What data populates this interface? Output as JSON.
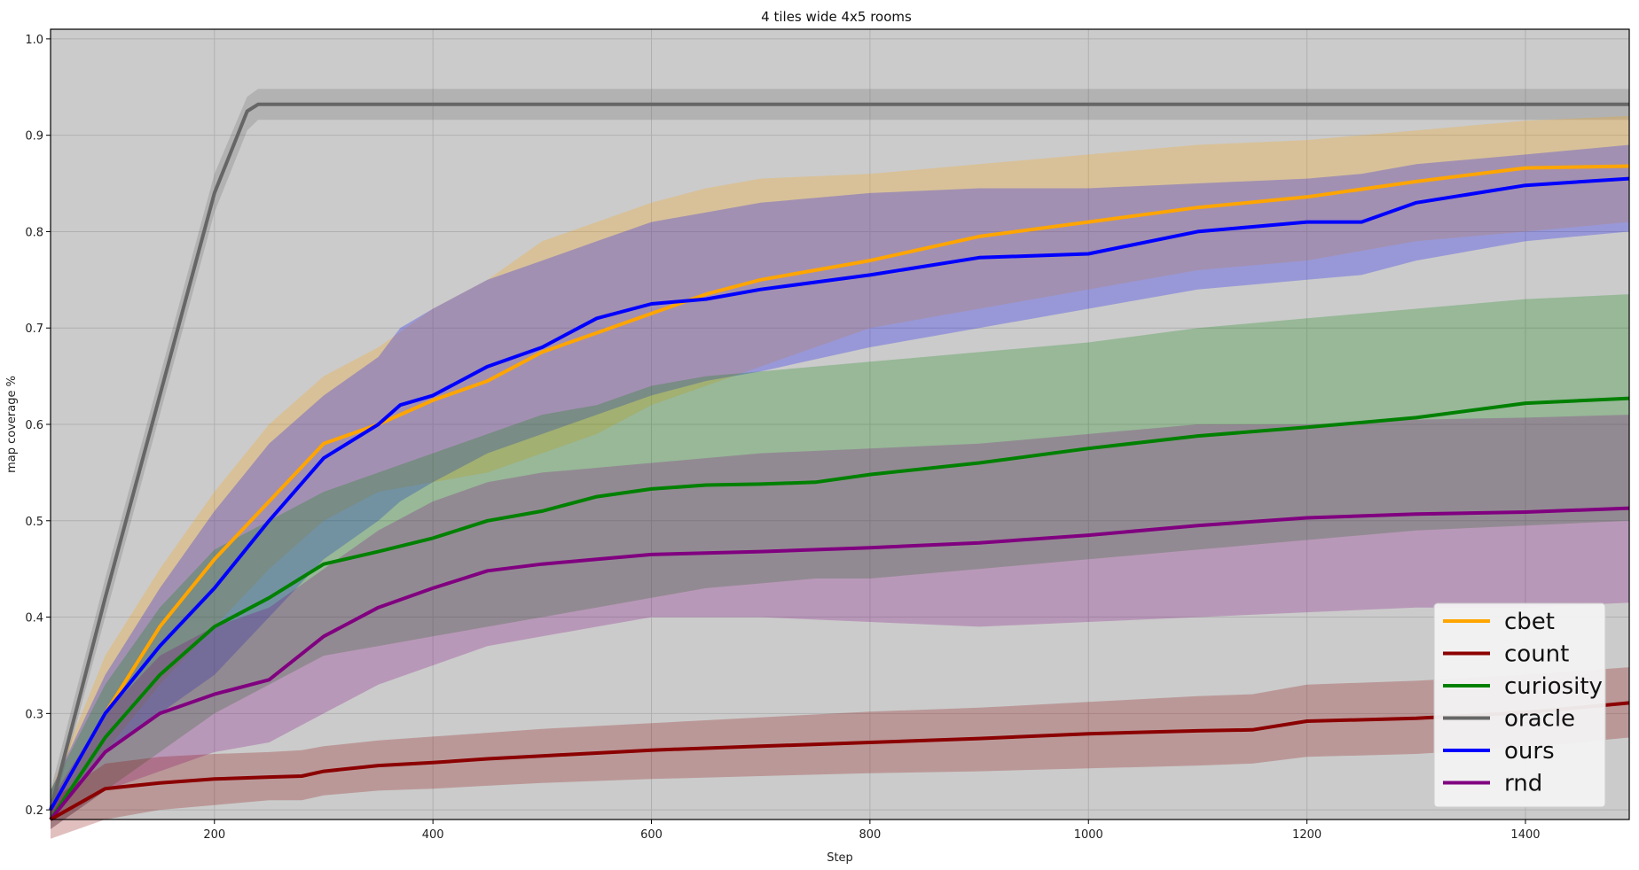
{
  "chart_data": {
    "type": "line",
    "title": "4 tiles wide 4x5 rooms",
    "xlabel": "Step",
    "ylabel": "map coverage %",
    "xlim": [
      50,
      1495
    ],
    "ylim": [
      0.19,
      1.01
    ],
    "xticks": [
      200,
      400,
      600,
      800,
      1000,
      1200,
      1400
    ],
    "yticks": [
      0.2,
      0.3,
      0.4,
      0.5,
      0.6,
      0.7,
      0.8,
      0.9,
      1.0
    ],
    "grid": true,
    "legend_position": "lower-right",
    "background": "#cbcbcb",
    "series": [
      {
        "name": "oracle",
        "color": "#666666",
        "x": [
          50,
          100,
          150,
          200,
          230,
          240,
          300,
          600,
          1000,
          1495
        ],
        "mean": [
          0.2,
          0.42,
          0.63,
          0.84,
          0.925,
          0.932,
          0.932,
          0.932,
          0.932,
          0.932
        ],
        "lower": [
          0.19,
          0.4,
          0.61,
          0.82,
          0.905,
          0.916,
          0.916,
          0.916,
          0.916,
          0.916
        ],
        "upper": [
          0.22,
          0.44,
          0.65,
          0.86,
          0.94,
          0.948,
          0.948,
          0.948,
          0.948,
          0.948
        ]
      },
      {
        "name": "cbet",
        "color": "#ffa500",
        "x": [
          50,
          100,
          150,
          200,
          250,
          300,
          350,
          400,
          450,
          500,
          550,
          600,
          650,
          700,
          800,
          900,
          1000,
          1100,
          1200,
          1300,
          1400,
          1495
        ],
        "mean": [
          0.2,
          0.3,
          0.39,
          0.46,
          0.52,
          0.58,
          0.6,
          0.625,
          0.645,
          0.675,
          0.695,
          0.715,
          0.735,
          0.75,
          0.77,
          0.795,
          0.81,
          0.825,
          0.836,
          0.852,
          0.866,
          0.868
        ],
        "lower": [
          0.19,
          0.26,
          0.33,
          0.39,
          0.45,
          0.5,
          0.53,
          0.54,
          0.55,
          0.57,
          0.59,
          0.62,
          0.64,
          0.66,
          0.7,
          0.72,
          0.74,
          0.76,
          0.77,
          0.79,
          0.8,
          0.81
        ],
        "upper": [
          0.22,
          0.36,
          0.45,
          0.53,
          0.6,
          0.65,
          0.68,
          0.72,
          0.75,
          0.79,
          0.81,
          0.83,
          0.845,
          0.855,
          0.86,
          0.87,
          0.88,
          0.89,
          0.895,
          0.905,
          0.915,
          0.92
        ]
      },
      {
        "name": "ours",
        "color": "#0000ff",
        "x": [
          50,
          100,
          150,
          200,
          250,
          300,
          350,
          370,
          400,
          450,
          500,
          550,
          600,
          650,
          700,
          800,
          900,
          1000,
          1100,
          1200,
          1250,
          1300,
          1400,
          1495
        ],
        "mean": [
          0.2,
          0.3,
          0.37,
          0.43,
          0.5,
          0.565,
          0.6,
          0.62,
          0.63,
          0.66,
          0.68,
          0.71,
          0.725,
          0.73,
          0.74,
          0.755,
          0.773,
          0.777,
          0.8,
          0.81,
          0.81,
          0.83,
          0.848,
          0.855
        ],
        "lower": [
          0.19,
          0.26,
          0.3,
          0.34,
          0.4,
          0.46,
          0.5,
          0.52,
          0.54,
          0.57,
          0.59,
          0.61,
          0.63,
          0.645,
          0.655,
          0.68,
          0.7,
          0.72,
          0.74,
          0.75,
          0.755,
          0.77,
          0.79,
          0.8
        ],
        "upper": [
          0.22,
          0.34,
          0.43,
          0.51,
          0.58,
          0.63,
          0.67,
          0.7,
          0.72,
          0.75,
          0.77,
          0.79,
          0.81,
          0.82,
          0.83,
          0.84,
          0.845,
          0.845,
          0.85,
          0.855,
          0.86,
          0.87,
          0.88,
          0.89
        ]
      },
      {
        "name": "curiosity",
        "color": "#008000",
        "x": [
          50,
          100,
          150,
          200,
          250,
          300,
          350,
          400,
          450,
          500,
          550,
          600,
          650,
          700,
          750,
          800,
          900,
          1000,
          1100,
          1200,
          1300,
          1400,
          1495
        ],
        "mean": [
          0.19,
          0.275,
          0.34,
          0.39,
          0.42,
          0.455,
          0.468,
          0.482,
          0.5,
          0.51,
          0.525,
          0.533,
          0.537,
          0.538,
          0.54,
          0.548,
          0.56,
          0.575,
          0.588,
          0.597,
          0.607,
          0.622,
          0.627
        ],
        "lower": [
          0.18,
          0.22,
          0.26,
          0.3,
          0.33,
          0.36,
          0.37,
          0.38,
          0.39,
          0.4,
          0.41,
          0.42,
          0.43,
          0.435,
          0.44,
          0.44,
          0.45,
          0.46,
          0.47,
          0.48,
          0.49,
          0.495,
          0.5
        ],
        "upper": [
          0.22,
          0.33,
          0.41,
          0.47,
          0.5,
          0.53,
          0.55,
          0.57,
          0.59,
          0.61,
          0.62,
          0.64,
          0.65,
          0.655,
          0.66,
          0.665,
          0.675,
          0.685,
          0.7,
          0.71,
          0.72,
          0.73,
          0.735
        ]
      },
      {
        "name": "rnd",
        "color": "#800080",
        "x": [
          50,
          100,
          150,
          200,
          250,
          300,
          350,
          400,
          450,
          500,
          550,
          600,
          700,
          800,
          900,
          1000,
          1100,
          1200,
          1300,
          1400,
          1495
        ],
        "mean": [
          0.19,
          0.26,
          0.3,
          0.32,
          0.335,
          0.38,
          0.41,
          0.43,
          0.448,
          0.455,
          0.46,
          0.465,
          0.468,
          0.472,
          0.477,
          0.485,
          0.495,
          0.503,
          0.507,
          0.509,
          0.513
        ],
        "lower": [
          0.18,
          0.22,
          0.24,
          0.26,
          0.27,
          0.3,
          0.33,
          0.35,
          0.37,
          0.38,
          0.39,
          0.4,
          0.4,
          0.395,
          0.39,
          0.395,
          0.4,
          0.405,
          0.41,
          0.41,
          0.415
        ],
        "upper": [
          0.21,
          0.3,
          0.36,
          0.39,
          0.41,
          0.45,
          0.49,
          0.52,
          0.54,
          0.55,
          0.555,
          0.56,
          0.57,
          0.575,
          0.58,
          0.59,
          0.6,
          0.6,
          0.605,
          0.607,
          0.61
        ]
      },
      {
        "name": "count",
        "color": "#8b0000",
        "x": [
          50,
          100,
          150,
          200,
          250,
          280,
          300,
          350,
          400,
          450,
          500,
          600,
          700,
          800,
          900,
          1000,
          1100,
          1150,
          1200,
          1300,
          1400,
          1495
        ],
        "mean": [
          0.19,
          0.222,
          0.228,
          0.232,
          0.234,
          0.235,
          0.24,
          0.246,
          0.249,
          0.253,
          0.256,
          0.262,
          0.266,
          0.27,
          0.274,
          0.279,
          0.282,
          0.283,
          0.292,
          0.295,
          0.301,
          0.311
        ],
        "lower": [
          0.17,
          0.19,
          0.2,
          0.205,
          0.21,
          0.21,
          0.215,
          0.22,
          0.222,
          0.225,
          0.228,
          0.232,
          0.235,
          0.238,
          0.24,
          0.243,
          0.246,
          0.248,
          0.255,
          0.258,
          0.265,
          0.275
        ],
        "upper": [
          0.21,
          0.248,
          0.255,
          0.258,
          0.26,
          0.262,
          0.266,
          0.272,
          0.276,
          0.28,
          0.284,
          0.29,
          0.296,
          0.302,
          0.306,
          0.312,
          0.318,
          0.32,
          0.33,
          0.334,
          0.34,
          0.348
        ]
      }
    ],
    "legend_order": [
      "cbet",
      "count",
      "curiosity",
      "oracle",
      "ours",
      "rnd"
    ]
  }
}
